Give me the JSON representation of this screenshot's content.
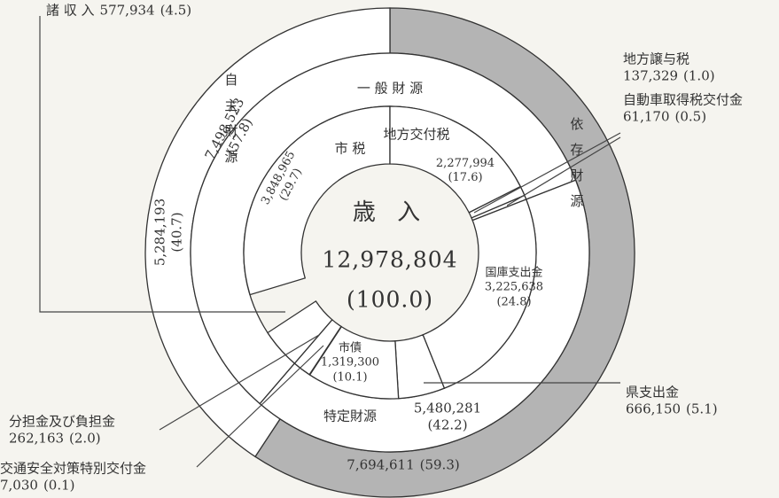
{
  "chart_data": {
    "type": "donut",
    "title": "歳 入",
    "total": 12978804,
    "total_label": "12,978,804",
    "total_percent": 100.0,
    "total_percent_label": "(100.0)",
    "rings": [
      {
        "segments": [
          {
            "name": "市 税",
            "value": 3848965,
            "value_label": "3,848,965",
            "percent": 29.7,
            "percent_label": "(29.7)"
          },
          {
            "name": "地方交付税",
            "value": 2277994,
            "value_label": "2,277,994",
            "percent": 17.6,
            "percent_label": "(17.6)"
          },
          {
            "name": "地方譲与税",
            "value": 137329,
            "value_label": "137,329",
            "percent": 1.0,
            "percent_label": "(1.0)"
          },
          {
            "name": "自動車取得税交付金",
            "value": 61170,
            "value_label": "61,170",
            "percent": 0.5,
            "percent_label": "(0.5)"
          },
          {
            "name": "国庫支出金",
            "value": 3225638,
            "value_label": "3,225,638",
            "percent": 24.8,
            "percent_label": "(24.8)"
          },
          {
            "name": "県支出金",
            "value": 666150,
            "value_label": "666,150",
            "percent": 5.1,
            "percent_label": "(5.1)"
          },
          {
            "name": "市債",
            "value": 1319300,
            "value_label": "1,319,300",
            "percent": 10.1,
            "percent_label": "(10.1)"
          },
          {
            "name": "交通安全対策特別交付金",
            "value": 7030,
            "value_label": "7,030",
            "percent": 0.1,
            "percent_label": "(0.1)"
          },
          {
            "name": "分担金及び負担金",
            "value": 262163,
            "value_label": "262,163",
            "percent": 2.0,
            "percent_label": "(2.0)"
          },
          {
            "name": "諸 収 入",
            "value": 577934,
            "value_label": "577,934",
            "percent": 4.5,
            "percent_label": "(4.5)"
          }
        ]
      },
      {
        "segments": [
          {
            "name": "一 般 財 源",
            "value": 7498523,
            "value_label": "7,498,523",
            "percent": 57.8,
            "percent_label": "(57.8)"
          },
          {
            "name": "特定財源",
            "value": 5480281,
            "value_label": "5,480,281",
            "percent": 42.2,
            "percent_label": "(42.2)"
          }
        ]
      },
      {
        "segments": [
          {
            "name": "依存財源",
            "value": 7694611,
            "value_label": "7,694,611",
            "percent": 59.3,
            "percent_label": "(59.3)",
            "color": "#b4b4b4"
          },
          {
            "name": "自主財源",
            "value": 5284193,
            "value_label": "5,284,193",
            "percent": 40.7,
            "percent_label": "(40.7)",
            "color": "#ffffff"
          }
        ]
      }
    ]
  }
}
